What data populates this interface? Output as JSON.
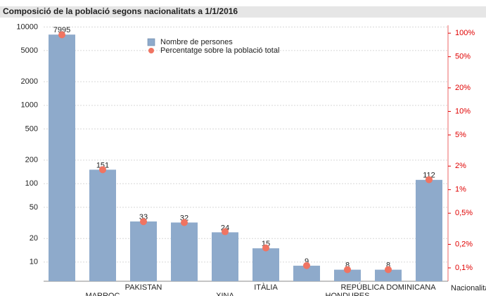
{
  "chart_data": {
    "type": "bar",
    "title": "Composició de la població segons nacionalitats a 1/1/2016",
    "x_label": "Nacionalitat",
    "categories": [
      null,
      "MARROC",
      "PAKISTAN",
      null,
      "XINA",
      "ITÀLIA",
      null,
      "HONDURES",
      "REPÚBLICA DOMINICANA",
      null
    ],
    "series": [
      {
        "name": "Nombre de persones",
        "color": "#8eaacb",
        "values": [
          7995,
          151,
          33,
          32,
          24,
          15,
          9,
          8,
          8,
          112
        ]
      },
      {
        "name": "Percentatge sobre la població total",
        "color": "#f07462",
        "axis": "y2",
        "type": "scatter",
        "values": [
          95.3,
          1.8,
          0.39,
          0.38,
          0.29,
          0.18,
          0.107,
          0.095,
          0.095,
          1.34
        ]
      }
    ],
    "log_scale": true,
    "ylim": [
      5.7,
      10500
    ],
    "yticks": [
      10,
      20,
      50,
      100,
      200,
      500,
      1000,
      2000,
      5000,
      10000
    ],
    "y2lim": [
      0.0675,
      126
    ],
    "y2ticks": [
      {
        "value": 0.1,
        "label": "0,1%"
      },
      {
        "value": 0.2,
        "label": "0,2%"
      },
      {
        "value": 0.5,
        "label": "0,5%"
      },
      {
        "value": 1,
        "label": "1%"
      },
      {
        "value": 2,
        "label": "2%"
      },
      {
        "value": 5,
        "label": "5%"
      },
      {
        "value": 10,
        "label": "10%"
      },
      {
        "value": 20,
        "label": "20%"
      },
      {
        "value": 50,
        "label": "50%"
      },
      {
        "value": 100,
        "label": "100%"
      }
    ],
    "grid": true
  }
}
